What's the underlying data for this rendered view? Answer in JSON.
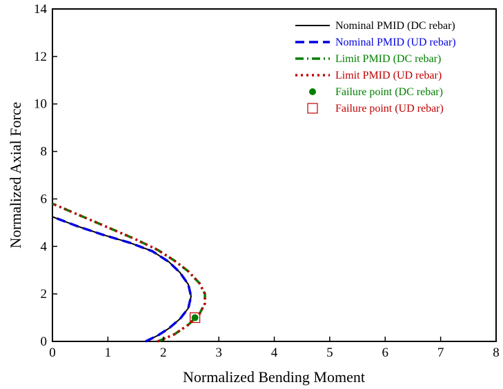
{
  "chart_data": {
    "type": "line",
    "xlabel": "Normalized Bending Moment",
    "ylabel": "Normalized Axial Force",
    "xlim": [
      0,
      8
    ],
    "ylim": [
      0,
      14
    ],
    "xticks": [
      "0",
      "1",
      "2",
      "3",
      "4",
      "5",
      "6",
      "7",
      "8"
    ],
    "yticks": [
      "0",
      "2",
      "4",
      "6",
      "8",
      "10",
      "12",
      "14"
    ],
    "grid": false,
    "legend_position": "top-right",
    "series": [
      {
        "name": "Nominal PMID (DC rebar)",
        "style": "solid",
        "color": "#000000",
        "x": [
          1.68,
          1.9,
          2.1,
          2.3,
          2.45,
          2.5,
          2.45,
          2.3,
          2.1,
          1.8,
          1.4,
          0.9,
          0.45,
          0.0
        ],
        "y": [
          0.0,
          0.25,
          0.55,
          0.95,
          1.4,
          1.9,
          2.4,
          2.9,
          3.35,
          3.8,
          4.15,
          4.5,
          4.85,
          5.25
        ]
      },
      {
        "name": "Nominal PMID (UD rebar)",
        "style": "dashed",
        "color": "#0000e0",
        "x": [
          1.68,
          1.9,
          2.1,
          2.3,
          2.45,
          2.5,
          2.45,
          2.3,
          2.1,
          1.8,
          1.4,
          0.9,
          0.45,
          0.0
        ],
        "y": [
          0.0,
          0.25,
          0.55,
          0.95,
          1.4,
          1.9,
          2.4,
          2.9,
          3.35,
          3.8,
          4.15,
          4.5,
          4.85,
          5.25
        ]
      },
      {
        "name": "Limit PMID (DC rebar)",
        "style": "dash-dot",
        "color": "#008000",
        "x": [
          1.9,
          2.2,
          2.45,
          2.65,
          2.75,
          2.75,
          2.65,
          2.45,
          2.2,
          1.9,
          1.5,
          1.0,
          0.5,
          0.0
        ],
        "y": [
          0.0,
          0.3,
          0.7,
          1.15,
          1.6,
          2.0,
          2.45,
          2.95,
          3.4,
          3.85,
          4.3,
          4.8,
          5.3,
          5.8
        ]
      },
      {
        "name": "Limit PMID (UD rebar)",
        "style": "dotted",
        "color": "#c00000",
        "x": [
          1.9,
          2.2,
          2.45,
          2.65,
          2.75,
          2.75,
          2.65,
          2.45,
          2.2,
          1.9,
          1.5,
          1.0,
          0.5,
          0.0
        ],
        "y": [
          0.0,
          0.3,
          0.7,
          1.15,
          1.6,
          2.0,
          2.45,
          2.95,
          3.4,
          3.85,
          4.3,
          4.8,
          5.3,
          5.8
        ]
      },
      {
        "name": "Failure point (DC rebar)",
        "style": "marker-circle",
        "color": "#008000",
        "x": [
          2.57
        ],
        "y": [
          1.0
        ]
      },
      {
        "name": "Failure point (UD rebar)",
        "style": "marker-square",
        "color": "#c00000",
        "x": [
          2.57
        ],
        "y": [
          1.0
        ]
      }
    ]
  }
}
